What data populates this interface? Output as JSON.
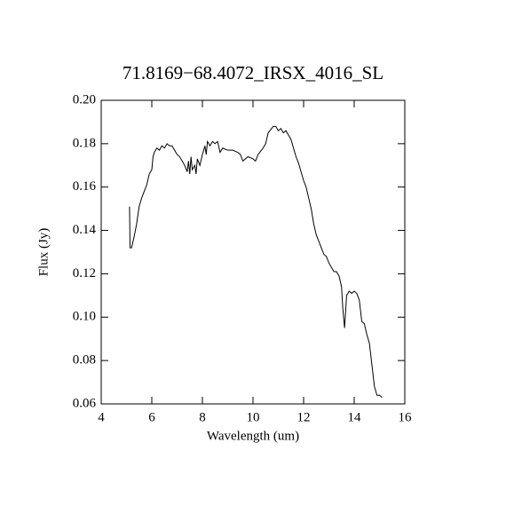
{
  "chart_data": {
    "type": "line",
    "title": "71.8169−68.4072_IRSX_4016_SL",
    "x_label": "Wavelength (um)",
    "y_label": "Flux (Jy)",
    "xlim": [
      4,
      16
    ],
    "xticks": [
      4,
      6,
      8,
      10,
      12,
      14,
      16
    ],
    "ylim": [
      0.06,
      0.2
    ],
    "yticks": [
      0.06,
      0.08,
      {
        "value": 0.1,
        "label": "0.10"
      },
      0.12,
      0.14,
      0.16,
      0.18,
      {
        "value": 0.2,
        "label": "0.20"
      }
    ],
    "color": "#000000",
    "x": [
      5.12,
      5.14,
      5.2,
      5.3,
      5.4,
      5.5,
      5.6,
      5.7,
      5.8,
      5.9,
      6.0,
      6.05,
      6.1,
      6.2,
      6.3,
      6.4,
      6.5,
      6.6,
      6.7,
      6.8,
      6.9,
      7.0,
      7.1,
      7.2,
      7.3,
      7.4,
      7.45,
      7.5,
      7.55,
      7.6,
      7.7,
      7.75,
      7.8,
      7.9,
      8.0,
      8.1,
      8.15,
      8.2,
      8.3,
      8.4,
      8.5,
      8.6,
      8.7,
      8.8,
      9.0,
      9.2,
      9.4,
      9.5,
      9.6,
      9.8,
      10.0,
      10.1,
      10.2,
      10.4,
      10.5,
      10.6,
      10.8,
      10.9,
      11.0,
      11.1,
      11.2,
      11.3,
      11.4,
      11.5,
      11.6,
      11.7,
      11.8,
      11.9,
      12.0,
      12.1,
      12.2,
      12.3,
      12.4,
      12.5,
      12.6,
      12.7,
      12.8,
      12.9,
      13.0,
      13.1,
      13.2,
      13.3,
      13.4,
      13.5,
      13.55,
      13.62,
      13.7,
      13.8,
      13.9,
      14.0,
      14.1,
      14.2,
      14.3,
      14.4,
      14.5,
      14.6,
      14.7,
      14.8,
      14.9,
      15.0,
      15.1
    ],
    "values": [
      0.151,
      0.132,
      0.132,
      0.137,
      0.143,
      0.151,
      0.155,
      0.158,
      0.161,
      0.166,
      0.168,
      0.174,
      0.176,
      0.178,
      0.177,
      0.179,
      0.178,
      0.18,
      0.179,
      0.179,
      0.177,
      0.175,
      0.174,
      0.172,
      0.17,
      0.167,
      0.172,
      0.166,
      0.174,
      0.168,
      0.17,
      0.166,
      0.173,
      0.17,
      0.175,
      0.179,
      0.175,
      0.181,
      0.179,
      0.181,
      0.18,
      0.181,
      0.176,
      0.178,
      0.177,
      0.177,
      0.176,
      0.175,
      0.172,
      0.174,
      0.173,
      0.172,
      0.175,
      0.178,
      0.18,
      0.185,
      0.188,
      0.188,
      0.186,
      0.187,
      0.185,
      0.186,
      0.184,
      0.182,
      0.178,
      0.174,
      0.171,
      0.167,
      0.163,
      0.16,
      0.155,
      0.15,
      0.143,
      0.138,
      0.135,
      0.132,
      0.129,
      0.128,
      0.125,
      0.123,
      0.121,
      0.121,
      0.119,
      0.114,
      0.104,
      0.095,
      0.11,
      0.112,
      0.111,
      0.112,
      0.111,
      0.108,
      0.098,
      0.097,
      0.092,
      0.088,
      0.078,
      0.068,
      0.064,
      0.064,
      0.063
    ]
  }
}
